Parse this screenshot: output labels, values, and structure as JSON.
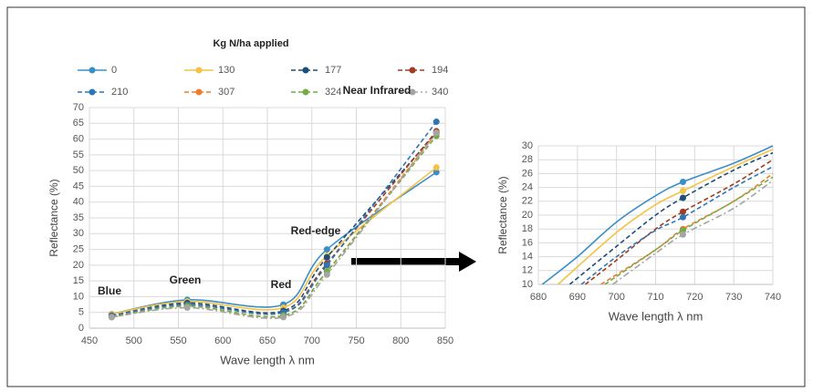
{
  "chart_data": [
    {
      "type": "line",
      "legend_title": "Kg N/ha applied",
      "xlabel": "Wave length λ nm",
      "ylabel": "Reflectance (%)",
      "xlim": [
        450,
        850
      ],
      "xticks": [
        450,
        500,
        550,
        600,
        650,
        700,
        750,
        800,
        850
      ],
      "ylim": [
        0,
        70
      ],
      "yticks": [
        0,
        5,
        10,
        15,
        20,
        25,
        30,
        35,
        40,
        45,
        50,
        55,
        60,
        65,
        70
      ],
      "grid": true,
      "annotations": [
        "Blue",
        "Green",
        "Red",
        "Red-edge",
        "Near Infrared"
      ],
      "x": [
        475,
        560,
        668,
        717,
        840
      ],
      "series": [
        {
          "name": "0",
          "color": "#3a8fc8",
          "dash": "solid",
          "values": [
            4.5,
            9,
            7.5,
            25,
            49.5
          ]
        },
        {
          "name": "130",
          "color": "#f5c242",
          "dash": "solid",
          "values": [
            4.5,
            8.5,
            6.5,
            23,
            51
          ]
        },
        {
          "name": "177",
          "color": "#1f4e79",
          "dash": "dash",
          "values": [
            4,
            8,
            5.5,
            22.5,
            62
          ]
        },
        {
          "name": "194",
          "color": "#a33b20",
          "dash": "dash",
          "values": [
            4,
            7.5,
            5,
            20.5,
            62.5
          ]
        },
        {
          "name": "210",
          "color": "#2e75b6",
          "dash": "dash",
          "values": [
            4,
            7.5,
            5,
            20,
            65.5
          ]
        },
        {
          "name": "307",
          "color": "#ed7d31",
          "dash": "dash",
          "values": [
            3.5,
            7,
            4,
            18,
            62
          ]
        },
        {
          "name": "324",
          "color": "#70ad47",
          "dash": "dash",
          "values": [
            3.5,
            7,
            4,
            18,
            61
          ]
        },
        {
          "name": "340",
          "color": "#a5a5a5",
          "dash": "dashdot",
          "values": [
            3.5,
            6.5,
            3.5,
            17,
            62
          ]
        }
      ]
    },
    {
      "type": "line",
      "xlabel": "Wave length λ nm",
      "ylabel": "Reflectance (%)",
      "xlim": [
        680,
        740
      ],
      "xticks": [
        680,
        690,
        700,
        710,
        720,
        730,
        740
      ],
      "ylim": [
        10,
        30
      ],
      "yticks": [
        10,
        12,
        14,
        16,
        18,
        20,
        22,
        24,
        26,
        28,
        30
      ],
      "grid": true,
      "markers": [
        717
      ],
      "series": [
        {
          "color": "#3a8fc8",
          "dash": "solid",
          "x": [
            681,
            690,
            700,
            710,
            717,
            730,
            740
          ],
          "values": [
            10,
            14,
            19,
            22.8,
            24.8,
            27.5,
            30
          ]
        },
        {
          "color": "#f5c242",
          "dash": "solid",
          "x": [
            685,
            700,
            710,
            717,
            730,
            740
          ],
          "values": [
            10,
            17.5,
            21.5,
            23.5,
            27,
            29.5
          ]
        },
        {
          "color": "#1f4e79",
          "dash": "dash",
          "x": [
            688,
            700,
            710,
            717,
            730,
            740
          ],
          "values": [
            10,
            15.5,
            20,
            22.5,
            26.5,
            29
          ]
        },
        {
          "color": "#a33b20",
          "dash": "dash",
          "x": [
            692,
            700,
            710,
            717,
            730,
            740
          ],
          "values": [
            10,
            13.5,
            18,
            20.5,
            24.5,
            28
          ]
        },
        {
          "color": "#2e75b6",
          "dash": "dash",
          "x": [
            691,
            700,
            710,
            717,
            730,
            740
          ],
          "values": [
            10,
            14,
            17.8,
            19.7,
            24,
            27
          ]
        },
        {
          "color": "#ed7d31",
          "dash": "dash",
          "x": [
            696,
            710,
            717,
            730,
            740
          ],
          "values": [
            10,
            15,
            18,
            22,
            26
          ]
        },
        {
          "color": "#70ad47",
          "dash": "dash",
          "x": [
            697,
            710,
            717,
            730,
            740
          ],
          "values": [
            10,
            15,
            17.8,
            22,
            25.5
          ]
        },
        {
          "color": "#a5a5a5",
          "dash": "dashdot",
          "x": [
            699,
            710,
            717,
            730,
            740
          ],
          "values": [
            10,
            14.5,
            17.2,
            21,
            25
          ]
        }
      ]
    }
  ]
}
